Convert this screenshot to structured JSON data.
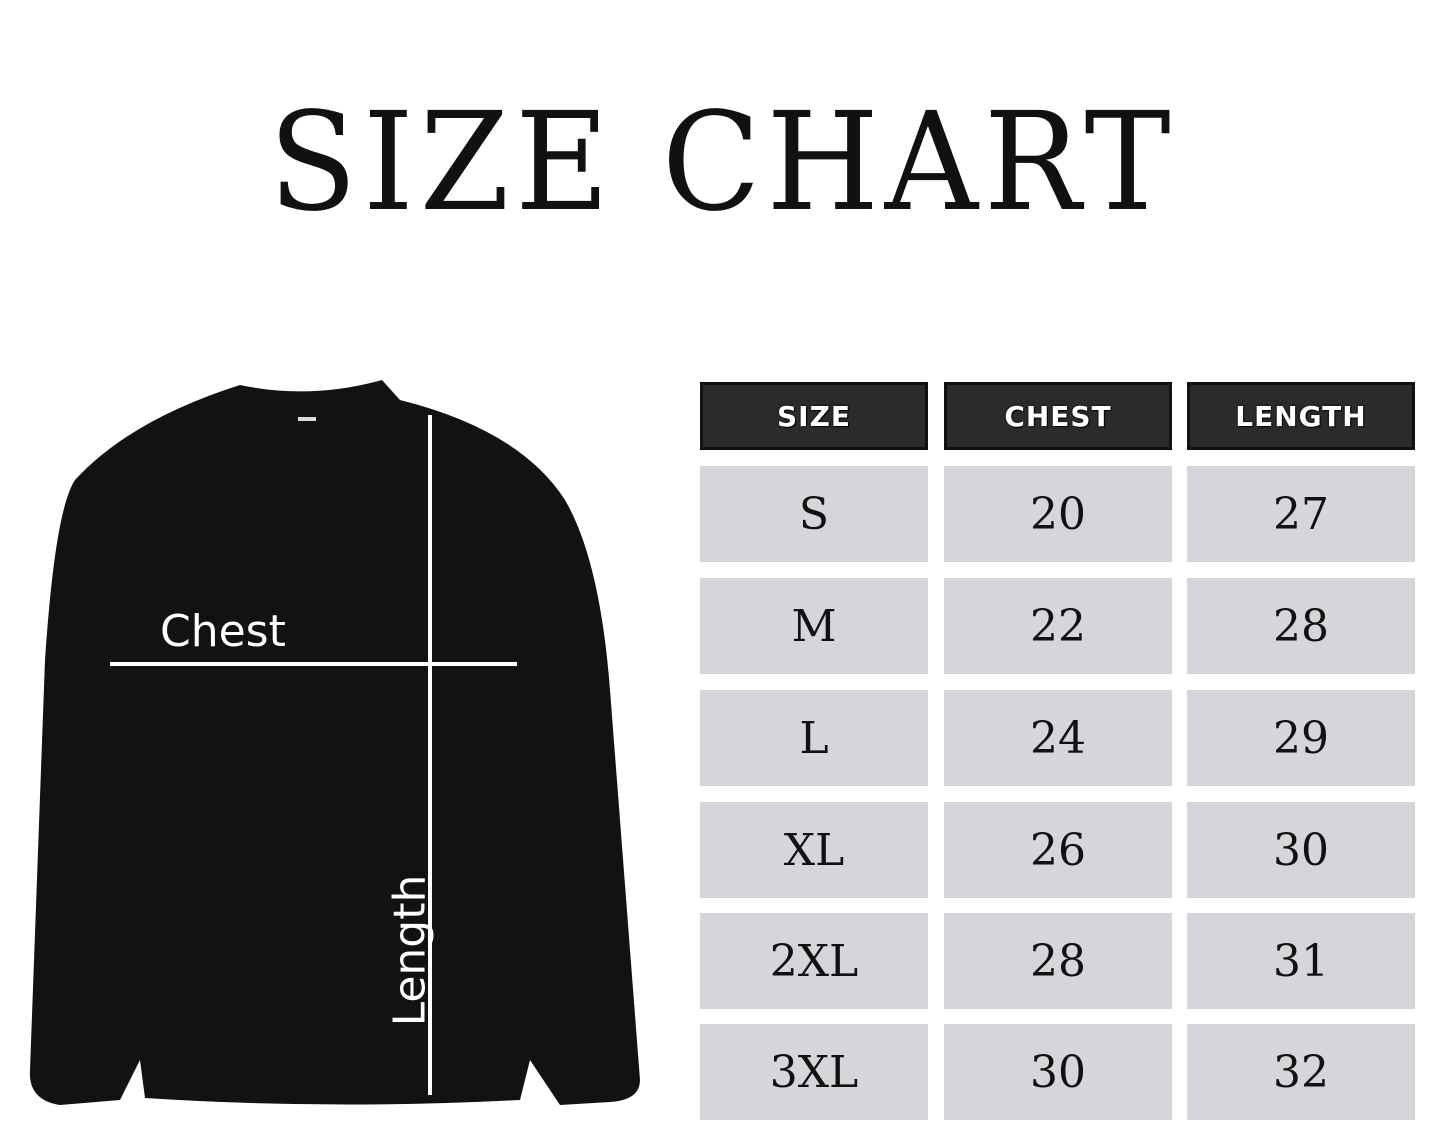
{
  "title": "SIZE CHART",
  "diagram": {
    "chest_label": "Chest",
    "length_label": "Length",
    "garment_color": "#111111"
  },
  "table": {
    "headers": [
      "SIZE",
      "CHEST",
      "LENGTH"
    ],
    "rows": [
      [
        "S",
        "20",
        "27"
      ],
      [
        "M",
        "22",
        "28"
      ],
      [
        "L",
        "24",
        "29"
      ],
      [
        "XL",
        "26",
        "30"
      ],
      [
        "2XL",
        "28",
        "31"
      ],
      [
        "3XL",
        "30",
        "32"
      ]
    ],
    "header_color": "#2b2b2b",
    "cell_color": "#d6d6da"
  }
}
